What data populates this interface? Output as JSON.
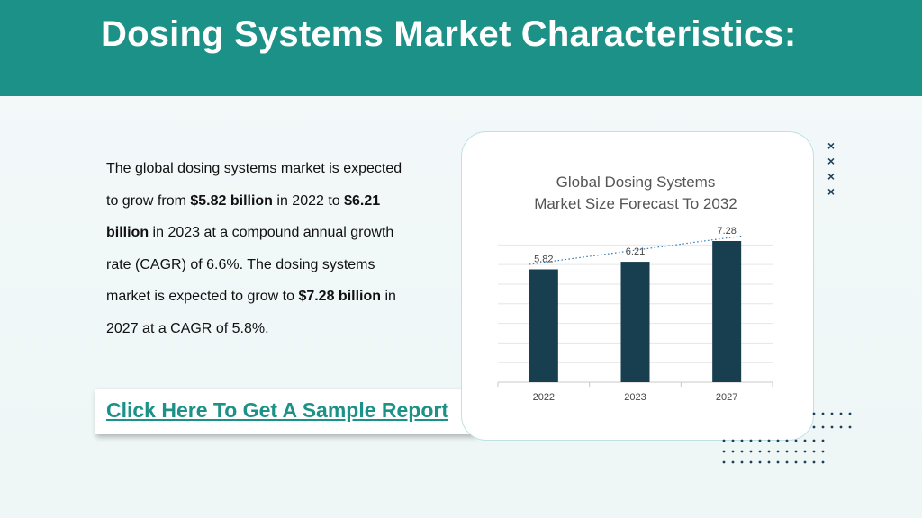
{
  "header": {
    "title": "Dosing Systems Market Characteristics:"
  },
  "body": {
    "p1": "The global dosing systems market is expected to grow from ",
    "b1": "$5.82 billion",
    "p2": " in 2022 to ",
    "b2": "$6.21 billion",
    "p3": " in 2023 at a compound annual growth rate (CAGR) of 6.6%. The dosing systems market is expected to grow to ",
    "b3": "$7.28 billion",
    "p4": " in 2027 at a CAGR of 5.8%."
  },
  "cta": {
    "label": "Click Here To Get A Sample Report"
  },
  "colors": {
    "header": "#1c9187",
    "bar": "#173f4f",
    "link": "#1c9187",
    "trendline": "#2e75b6"
  },
  "decorations": {
    "x_marks": [
      "×",
      "×",
      "×",
      "×"
    ]
  },
  "chart_data": {
    "type": "bar",
    "title_line1": "Global Dosing Systems",
    "title_line2": "Market Size Forecast To 2032",
    "categories": [
      "2022",
      "2023",
      "2027"
    ],
    "values": [
      5.82,
      6.21,
      7.28
    ],
    "data_labels": [
      "5.82",
      "6.21",
      "7.28"
    ],
    "ylim": [
      0,
      7.28
    ],
    "grid": true,
    "trendline": "dotted linear",
    "legend": "none"
  }
}
